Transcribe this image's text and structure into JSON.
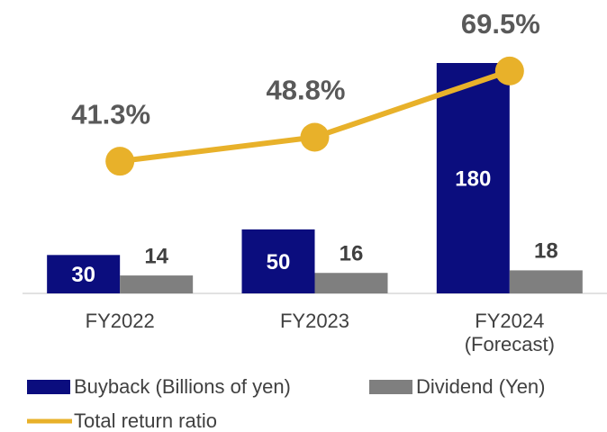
{
  "chart_data": {
    "type": "bar",
    "categories": [
      "FY2022",
      "FY2023",
      "FY2024\n(Forecast)"
    ],
    "ylim": [
      0,
      180
    ],
    "y2lim": [
      0,
      72
    ],
    "legend": "bottom",
    "series": [
      {
        "name": "Buyback (Billions of yen)",
        "color": "#0b0d7e",
        "values": [
          30,
          50,
          180
        ]
      },
      {
        "name": "Dividend (Yen)",
        "color": "#7f7f7f",
        "values": [
          14,
          16,
          18
        ]
      },
      {
        "name": "Total return ratio",
        "color": "#e8b12a",
        "type": "line",
        "axis": "y2",
        "values": [
          41.3,
          48.8,
          69.5
        ],
        "value_labels": [
          "41.3%",
          "48.8%",
          "69.5%"
        ]
      }
    ]
  }
}
